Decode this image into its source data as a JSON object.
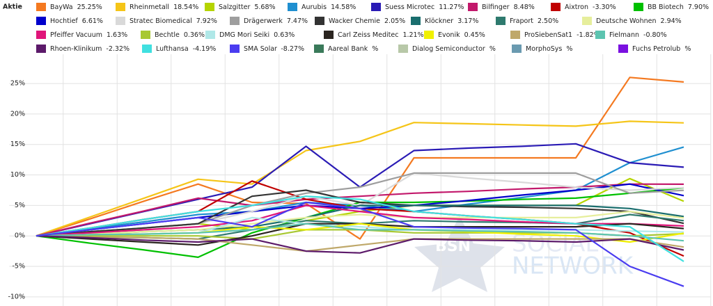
{
  "chart_data": {
    "type": "line",
    "legend_title": "Aktie",
    "categories": [
      null,
      null,
      null,
      null,
      null,
      null,
      null,
      null,
      null,
      null,
      null,
      null,
      null
    ],
    "ylim": [
      -11.5,
      29.8
    ],
    "yticks": [
      {
        "value": -10,
        "label": "-10%"
      },
      {
        "value": -5,
        "label": "-5%"
      },
      {
        "value": 0,
        "label": "0%"
      },
      {
        "value": 5,
        "label": "5%"
      },
      {
        "value": 10,
        "label": "10%"
      },
      {
        "value": 15,
        "label": "15%"
      },
      {
        "value": 20,
        "label": "20%"
      },
      {
        "value": 25,
        "label": "25%"
      }
    ],
    "grid": true,
    "watermark": [
      "BSN",
      "SOCIAL",
      "NETWORK"
    ],
    "series": [
      {
        "name": "BayWa",
        "color": "#f47920",
        "value_label": "25.25%",
        "values": [
          0,
          2.8,
          5.7,
          8.5,
          5.5,
          5.3,
          -0.5,
          12.8,
          12.8,
          12.8,
          12.8,
          26.0,
          25.25
        ]
      },
      {
        "name": "Rheinmetall",
        "color": "#f5c518",
        "value_label": "18.54%",
        "values": [
          0,
          3.1,
          6.2,
          9.3,
          8.5,
          14,
          15.5,
          18.6,
          18.4,
          18.2,
          18.0,
          18.8,
          18.54
        ]
      },
      {
        "name": "Salzgitter",
        "color": "#b5d400",
        "value_label": "5.68%",
        "values": [
          0,
          0.7,
          1.3,
          2,
          1,
          2.5,
          4,
          5,
          5,
          5,
          5,
          9.4,
          5.68
        ]
      },
      {
        "name": "Aurubis",
        "color": "#1f8fd0",
        "value_label": "14.58%",
        "values": [
          0,
          1.2,
          2.3,
          3.5,
          4,
          5.5,
          5,
          4,
          5.2,
          6.3,
          7.5,
          12,
          14.58
        ]
      },
      {
        "name": "Suess Microtec",
        "color": "#2a1bb5",
        "value_label": "11.27%",
        "values": [
          0,
          2,
          4,
          6,
          8,
          14.7,
          8,
          14,
          14.4,
          14.7,
          15.1,
          12,
          11.27
        ]
      },
      {
        "name": "Bilfinger",
        "color": "#c2186b",
        "value_label": "8.48%",
        "values": [
          0,
          2.1,
          4.1,
          6.2,
          5,
          6,
          6.5,
          7,
          7.3,
          7.7,
          8,
          8.5,
          8.48
        ]
      },
      {
        "name": "Aixtron",
        "color": "#c00000",
        "value_label": "-3.30%",
        "values": [
          0,
          1.3,
          2.7,
          4,
          9,
          6,
          4.5,
          4,
          3.3,
          2.7,
          2,
          0.5,
          -3.3
        ]
      },
      {
        "name": "BB Biotech",
        "color": "#00c000",
        "value_label": "7.90%",
        "values": [
          0,
          -1.2,
          -2.3,
          -3.5,
          0.5,
          3,
          5.5,
          5.5,
          5.7,
          6,
          6.2,
          7,
          7.9
        ]
      },
      {
        "name": "Hochtief",
        "color": "#0000cc",
        "value_label": "6.61%",
        "values": [
          0,
          1,
          2,
          3,
          4,
          5,
          4.5,
          5,
          5.8,
          6.7,
          7.5,
          8.5,
          6.61
        ]
      },
      {
        "name": "Stratec Biomedical",
        "color": "#d9d9d9",
        "value_label": "7.92%",
        "values": [
          0,
          0.7,
          1.3,
          2,
          4,
          6.5,
          5,
          10.3,
          9.5,
          8.8,
          8,
          7.5,
          7.92
        ]
      },
      {
        "name": "Drägerwerk",
        "color": "#9e9e9e",
        "value_label": "7.47%",
        "values": [
          0,
          0.7,
          1.3,
          2,
          5,
          7,
          8,
          10.3,
          10.3,
          10.3,
          10.3,
          7,
          7.47
        ]
      },
      {
        "name": "Wacker Chemie",
        "color": "#333333",
        "value_label": "2.05%",
        "values": [
          0,
          0.7,
          1.3,
          2,
          6.5,
          7.5,
          5.5,
          5,
          4.8,
          4.7,
          4.5,
          4,
          2.05
        ]
      },
      {
        "name": "Klöckner",
        "color": "#1a6e6e",
        "value_label": "3.17%",
        "values": [
          0,
          0.3,
          0.7,
          1,
          1.5,
          3,
          5,
          5,
          5,
          5,
          5,
          4.5,
          3.17
        ]
      },
      {
        "name": "Fraport",
        "color": "#2e7a6e",
        "value_label": "2.50%",
        "values": [
          0,
          -0.2,
          -0.3,
          -0.5,
          1,
          2.5,
          2,
          2.5,
          2.3,
          2.2,
          2,
          3.5,
          2.5
        ]
      },
      {
        "name": "Deutsche Wohnen",
        "color": "#e6ee9c",
        "value_label": "2.94%",
        "values": [
          0,
          0.3,
          0.7,
          1,
          2,
          3,
          3.5,
          3,
          3,
          3,
          3,
          4,
          2.94
        ]
      },
      {
        "name": "Pfeiffer Vacuum",
        "color": "#e0157a",
        "value_label": "1.63%",
        "values": [
          0,
          0.5,
          1,
          1.5,
          2.5,
          5,
          4,
          3,
          2.7,
          2.3,
          2,
          2,
          1.63
        ]
      },
      {
        "name": "Bechtle",
        "color": "#a8c832",
        "value_label": "0.36%",
        "values": [
          0,
          0,
          0,
          0,
          -0.5,
          1,
          1,
          0.5,
          0.5,
          0.5,
          0.5,
          0,
          0.36
        ]
      },
      {
        "name": "DMG Mori Seiki",
        "color": "#b0e8e8",
        "value_label": "0.63%",
        "values": [
          0,
          0.2,
          0.3,
          0.5,
          3,
          2,
          1.5,
          1,
          1,
          1,
          1,
          0.8,
          0.63
        ]
      },
      {
        "name": "Carl Zeiss Meditec",
        "color": "#2b2520",
        "value_label": "1.21%",
        "values": [
          0,
          -0.5,
          -1,
          -1.5,
          0,
          2,
          2,
          1.5,
          1.5,
          1.5,
          1.5,
          2,
          1.21
        ]
      },
      {
        "name": "Evonik",
        "color": "#f0f000",
        "value_label": "0.45%",
        "values": [
          0,
          0.2,
          0.3,
          0.5,
          1.5,
          1,
          2,
          1,
          0.7,
          0.3,
          0,
          -1,
          0.45
        ]
      },
      {
        "name": "ProSiebenSat1",
        "color": "#bfa86a",
        "value_label": "-1.82%",
        "values": [
          0,
          -0.2,
          -0.3,
          -0.5,
          -1.5,
          -2.5,
          -1.5,
          -0.5,
          -0.5,
          -0.5,
          -0.5,
          -0.5,
          -1.82
        ]
      },
      {
        "name": "Fielmann",
        "color": "#5cc4b0",
        "value_label": "-0.80%",
        "values": [
          0,
          0.2,
          0.3,
          0.5,
          1,
          2,
          1,
          1,
          0.8,
          0.7,
          0.5,
          0,
          -0.8
        ]
      },
      {
        "name": "Rhoen-Klinikum",
        "color": "#5c1a6a",
        "value_label": "-2.32%",
        "values": [
          0,
          -0.3,
          -0.7,
          -1,
          -0.5,
          -2.5,
          -2.8,
          -0.5,
          -0.7,
          -0.8,
          -1,
          -0.5,
          -2.32
        ]
      },
      {
        "name": "Lufthansa",
        "color": "#40e0e0",
        "value_label": "-4.19%",
        "values": [
          0,
          1.3,
          2.7,
          4,
          5,
          6.5,
          6,
          4,
          3.3,
          2.7,
          2,
          1.5,
          -4.19
        ]
      },
      {
        "name": "SMA Solar",
        "color": "#4a3cf0",
        "value_label": "-8.27%",
        "values": [
          0,
          1,
          2,
          3,
          1.5,
          5.5,
          4.5,
          1.5,
          1.3,
          1.2,
          1,
          -5,
          -8.27
        ]
      },
      {
        "name": "Aareal Bank",
        "color": "#3a7a5a",
        "value_label": "%"
      },
      {
        "name": "Dialog Semiconductor",
        "color": "#b8c8a8",
        "value_label": "%"
      },
      {
        "name": "MorphoSys",
        "color": "#6a9ab0",
        "value_label": "%"
      },
      {
        "name": "Fuchs Petrolub",
        "color": "#7a10e0",
        "value_label": "%"
      }
    ]
  }
}
